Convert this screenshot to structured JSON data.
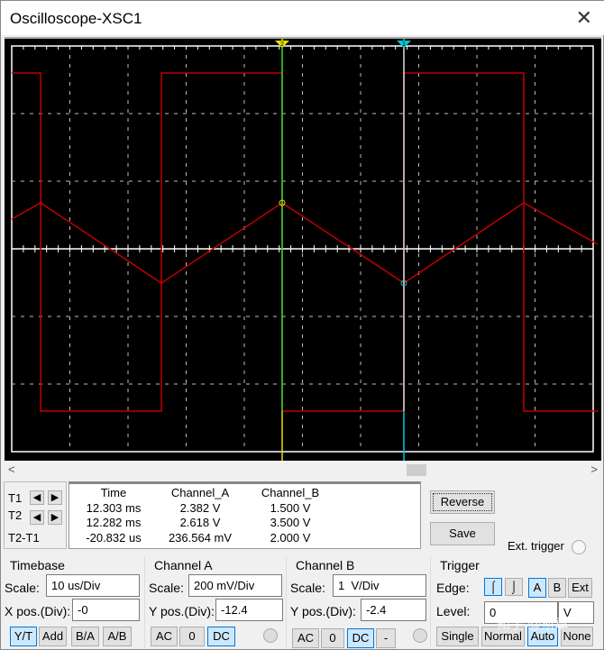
{
  "window": {
    "title": "Oscilloscope-XSC1",
    "close_icon": "close-icon"
  },
  "screen": {
    "background": "#000000",
    "grid_color": "#ffffff",
    "trace_color": "#c00000",
    "cursor1_color": "#00c8d8",
    "cursor2_color": "#e8e000",
    "cursor1_label": "1",
    "cursor2_label": "2"
  },
  "cursors": {
    "t1": "T1",
    "t2": "T2",
    "diff": "T2-T1"
  },
  "measurements": {
    "headers": [
      "Time",
      "Channel_A",
      "Channel_B"
    ],
    "rows": [
      [
        "12.303 ms",
        "2.382 V",
        "1.500 V"
      ],
      [
        "12.282 ms",
        "2.618 V",
        "3.500 V"
      ],
      [
        "-20.832 us",
        "236.564 mV",
        "2.000 V"
      ]
    ]
  },
  "buttons": {
    "reverse": "Reverse",
    "save": "Save",
    "ext_trigger": "Ext. trigger"
  },
  "timebase": {
    "title": "Timebase",
    "scale_label": "Scale:",
    "scale": "10 us/Div",
    "xpos_label": "X pos.(Div):",
    "xpos": "-0",
    "modes": [
      "Y/T",
      "Add",
      "B/A",
      "A/B"
    ],
    "active_mode": "Y/T"
  },
  "channel_a": {
    "title": "Channel A",
    "scale_label": "Scale:",
    "scale": "200 mV/Div",
    "ypos_label": "Y pos.(Div):",
    "ypos": "-12.4",
    "coupling": [
      "AC",
      "0",
      "DC"
    ],
    "active": "DC"
  },
  "channel_b": {
    "title": "Channel B",
    "scale_label": "Scale:",
    "scale": "1  V/Div",
    "ypos_label": "Y pos.(Div):",
    "ypos": "-2.4",
    "coupling": [
      "AC",
      "0",
      "DC",
      "-"
    ],
    "active": "DC"
  },
  "trigger": {
    "title": "Trigger",
    "edge_label": "Edge:",
    "rising": "rising-edge-icon",
    "falling": "falling-edge-icon",
    "sources": [
      "A",
      "B",
      "Ext"
    ],
    "active_source": "A",
    "level_label": "Level:",
    "level": "0",
    "level_unit": "V",
    "modes": [
      "Single",
      "Normal",
      "Auto",
      "None"
    ],
    "active_mode": "Auto"
  },
  "watermark": "知乎 @斯草"
}
